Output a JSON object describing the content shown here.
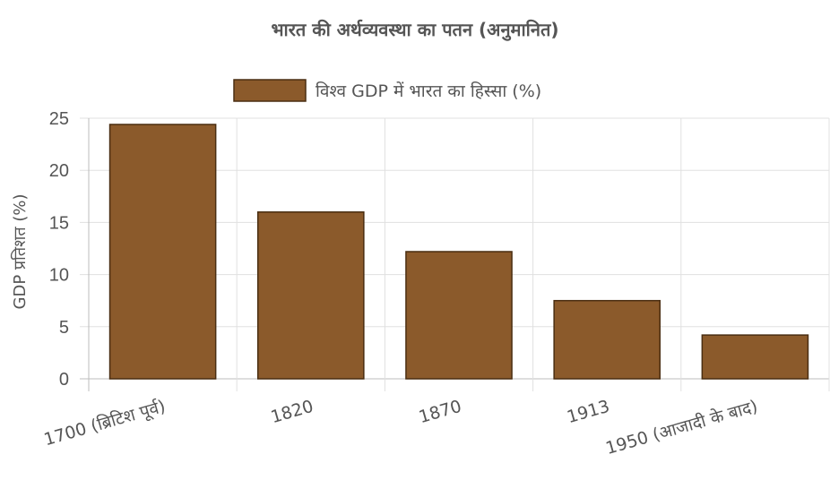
{
  "chart_data": {
    "type": "bar",
    "title": "भारत की अर्थव्यवस्था का पतन (अनुमानित)",
    "categories": [
      "1700 (ब्रिटिश पूर्व)",
      "1820",
      "1870",
      "1913",
      "1950 (आजादी के बाद)"
    ],
    "series": [
      {
        "name": "विश्व GDP में भारत का हिस्सा (%)",
        "values": [
          24.4,
          16.0,
          12.2,
          7.5,
          4.2
        ]
      }
    ],
    "xlabel": "",
    "ylabel": "GDP प्रतिशत (%)",
    "ylim": [
      0,
      25
    ],
    "yticks": [
      "0",
      "5",
      "10",
      "15",
      "20",
      "25"
    ],
    "grid": true,
    "legend_position": "top",
    "colors": {
      "bar_fill": "#8B5A2B",
      "bar_stroke": "#4A2E12",
      "grid": "#e0e0e0",
      "text": "#555555"
    }
  }
}
